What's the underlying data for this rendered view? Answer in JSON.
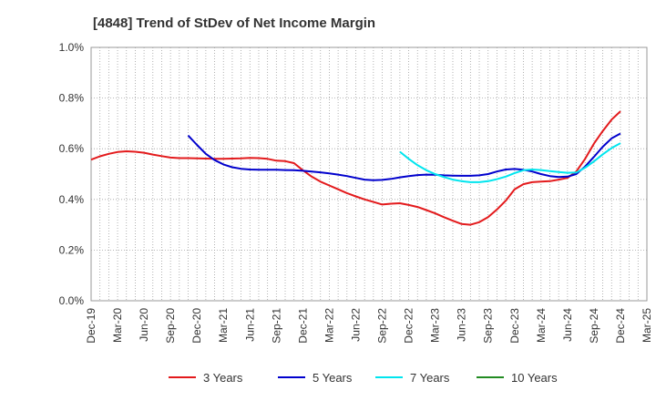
{
  "chart_data": {
    "type": "line",
    "title": "[4848]  Trend of StDev of Net Income Margin",
    "xlabel": "",
    "ylabel": "",
    "x_ticks": [
      "Dec-19",
      "Mar-20",
      "Jun-20",
      "Sep-20",
      "Dec-20",
      "Mar-21",
      "Jun-21",
      "Sep-21",
      "Dec-21",
      "Mar-22",
      "Jun-22",
      "Sep-22",
      "Dec-22",
      "Mar-23",
      "Jun-23",
      "Sep-23",
      "Dec-23",
      "Mar-24",
      "Jun-24",
      "Sep-24",
      "Dec-24",
      "Mar-25"
    ],
    "y_ticks": [
      "0.0%",
      "0.2%",
      "0.4%",
      "0.6%",
      "0.8%",
      "1.0%"
    ],
    "ylim": [
      0,
      1.0
    ],
    "grid": true,
    "legend_position": "bottom",
    "series": [
      {
        "name": "3 Years",
        "color": "#e31a1c",
        "points": [
          [
            "Dec-19",
            0.557
          ],
          [
            "Jan-20",
            0.57
          ],
          [
            "Feb-20",
            0.58
          ],
          [
            "Mar-20",
            0.587
          ],
          [
            "Apr-20",
            0.59
          ],
          [
            "May-20",
            0.588
          ],
          [
            "Jun-20",
            0.584
          ],
          [
            "Jul-20",
            0.577
          ],
          [
            "Aug-20",
            0.571
          ],
          [
            "Sep-20",
            0.565
          ],
          [
            "Oct-20",
            0.563
          ],
          [
            "Nov-20",
            0.563
          ],
          [
            "Dec-20",
            0.562
          ],
          [
            "Jan-21",
            0.561
          ],
          [
            "Feb-21",
            0.56
          ],
          [
            "Mar-21",
            0.56
          ],
          [
            "Apr-21",
            0.561
          ],
          [
            "May-21",
            0.562
          ],
          [
            "Jun-21",
            0.564
          ],
          [
            "Jul-21",
            0.563
          ],
          [
            "Aug-21",
            0.56
          ],
          [
            "Sep-21",
            0.553
          ],
          [
            "Oct-21",
            0.551
          ],
          [
            "Nov-21",
            0.543
          ],
          [
            "Dec-21",
            0.515
          ],
          [
            "Jan-22",
            0.49
          ],
          [
            "Feb-22",
            0.47
          ],
          [
            "Mar-22",
            0.455
          ],
          [
            "Apr-22",
            0.44
          ],
          [
            "May-22",
            0.425
          ],
          [
            "Jun-22",
            0.412
          ],
          [
            "Jul-22",
            0.4
          ],
          [
            "Aug-22",
            0.39
          ],
          [
            "Sep-22",
            0.38
          ],
          [
            "Oct-22",
            0.383
          ],
          [
            "Nov-22",
            0.385
          ],
          [
            "Dec-22",
            0.378
          ],
          [
            "Jan-23",
            0.37
          ],
          [
            "Feb-23",
            0.358
          ],
          [
            "Mar-23",
            0.345
          ],
          [
            "Apr-23",
            0.33
          ],
          [
            "May-23",
            0.316
          ],
          [
            "Jun-23",
            0.303
          ],
          [
            "Jul-23",
            0.3
          ],
          [
            "Aug-23",
            0.31
          ],
          [
            "Sep-23",
            0.33
          ],
          [
            "Oct-23",
            0.36
          ],
          [
            "Nov-23",
            0.395
          ],
          [
            "Dec-23",
            0.44
          ],
          [
            "Jan-24",
            0.46
          ],
          [
            "Feb-24",
            0.468
          ],
          [
            "Mar-24",
            0.47
          ],
          [
            "Apr-24",
            0.472
          ],
          [
            "May-24",
            0.478
          ],
          [
            "Jun-24",
            0.485
          ],
          [
            "Jul-24",
            0.51
          ],
          [
            "Aug-24",
            0.56
          ],
          [
            "Sep-24",
            0.62
          ],
          [
            "Oct-24",
            0.67
          ],
          [
            "Nov-24",
            0.715
          ],
          [
            "Dec-24",
            0.748
          ]
        ]
      },
      {
        "name": "5 Years",
        "color": "#0000cd",
        "points": [
          [
            "Nov-20",
            0.652
          ],
          [
            "Dec-20",
            0.615
          ],
          [
            "Jan-21",
            0.58
          ],
          [
            "Feb-21",
            0.555
          ],
          [
            "Mar-21",
            0.538
          ],
          [
            "Apr-21",
            0.527
          ],
          [
            "May-21",
            0.521
          ],
          [
            "Jun-21",
            0.518
          ],
          [
            "Jul-21",
            0.517
          ],
          [
            "Aug-21",
            0.517
          ],
          [
            "Sep-21",
            0.517
          ],
          [
            "Oct-21",
            0.516
          ],
          [
            "Nov-21",
            0.515
          ],
          [
            "Dec-21",
            0.513
          ],
          [
            "Jan-22",
            0.51
          ],
          [
            "Feb-22",
            0.507
          ],
          [
            "Mar-22",
            0.503
          ],
          [
            "Apr-22",
            0.498
          ],
          [
            "May-22",
            0.492
          ],
          [
            "Jun-22",
            0.485
          ],
          [
            "Jul-22",
            0.478
          ],
          [
            "Aug-22",
            0.476
          ],
          [
            "Sep-22",
            0.477
          ],
          [
            "Oct-22",
            0.481
          ],
          [
            "Nov-22",
            0.487
          ],
          [
            "Dec-22",
            0.492
          ],
          [
            "Jan-23",
            0.496
          ],
          [
            "Feb-23",
            0.498
          ],
          [
            "Mar-23",
            0.497
          ],
          [
            "Apr-23",
            0.495
          ],
          [
            "May-23",
            0.494
          ],
          [
            "Jun-23",
            0.493
          ],
          [
            "Jul-23",
            0.493
          ],
          [
            "Aug-23",
            0.495
          ],
          [
            "Sep-23",
            0.5
          ],
          [
            "Oct-23",
            0.51
          ],
          [
            "Nov-23",
            0.518
          ],
          [
            "Dec-23",
            0.52
          ],
          [
            "Jan-24",
            0.517
          ],
          [
            "Feb-24",
            0.51
          ],
          [
            "Mar-24",
            0.5
          ],
          [
            "Apr-24",
            0.492
          ],
          [
            "May-24",
            0.488
          ],
          [
            "Jun-24",
            0.49
          ],
          [
            "Jul-24",
            0.5
          ],
          [
            "Aug-24",
            0.53
          ],
          [
            "Sep-24",
            0.568
          ],
          [
            "Oct-24",
            0.608
          ],
          [
            "Nov-24",
            0.641
          ],
          [
            "Dec-24",
            0.66
          ]
        ]
      },
      {
        "name": "7 Years",
        "color": "#00e5ee",
        "points": [
          [
            "Nov-22",
            0.588
          ],
          [
            "Dec-22",
            0.56
          ],
          [
            "Jan-23",
            0.535
          ],
          [
            "Feb-23",
            0.515
          ],
          [
            "Mar-23",
            0.5
          ],
          [
            "Apr-23",
            0.488
          ],
          [
            "May-23",
            0.478
          ],
          [
            "Jun-23",
            0.472
          ],
          [
            "Jul-23",
            0.468
          ],
          [
            "Aug-23",
            0.468
          ],
          [
            "Sep-23",
            0.472
          ],
          [
            "Oct-23",
            0.48
          ],
          [
            "Nov-23",
            0.49
          ],
          [
            "Dec-23",
            0.504
          ],
          [
            "Jan-24",
            0.515
          ],
          [
            "Feb-24",
            0.518
          ],
          [
            "Mar-24",
            0.516
          ],
          [
            "Apr-24",
            0.512
          ],
          [
            "May-24",
            0.508
          ],
          [
            "Jun-24",
            0.505
          ],
          [
            "Jul-24",
            0.506
          ],
          [
            "Aug-24",
            0.525
          ],
          [
            "Sep-24",
            0.55
          ],
          [
            "Oct-24",
            0.578
          ],
          [
            "Nov-24",
            0.603
          ],
          [
            "Dec-24",
            0.622
          ]
        ]
      },
      {
        "name": "10 Years",
        "color": "#228b22",
        "points": []
      }
    ]
  }
}
